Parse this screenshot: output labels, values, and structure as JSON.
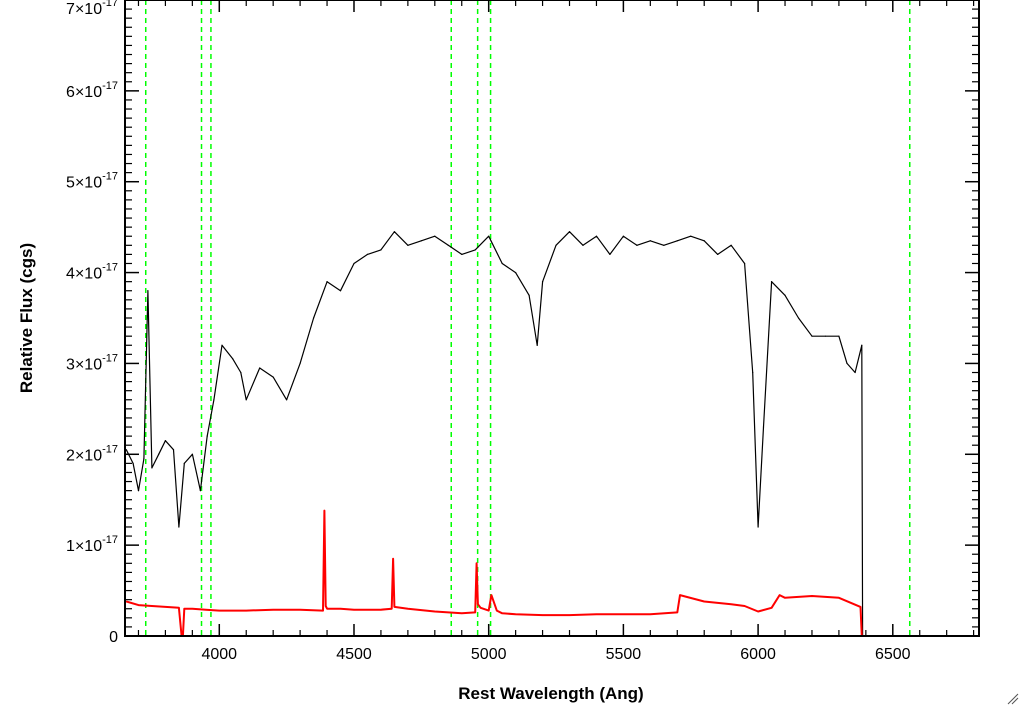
{
  "chart_data": {
    "type": "line",
    "xlabel": "Rest Wavelength (Ang)",
    "ylabel": "Relative Flux (cgs)",
    "xlim": [
      3650,
      6820
    ],
    "ylim": [
      0,
      7e-17
    ],
    "x_ticks": [
      {
        "value": 4000,
        "label": "4000"
      },
      {
        "value": 4500,
        "label": "4500"
      },
      {
        "value": 5000,
        "label": "5000"
      },
      {
        "value": 5500,
        "label": "5500"
      },
      {
        "value": 6000,
        "label": "6000"
      },
      {
        "value": 6500,
        "label": "6500"
      }
    ],
    "y_ticks": [
      {
        "value": 0,
        "mantissa": "0",
        "exponent": ""
      },
      {
        "value": 1e-17,
        "mantissa": "1×10",
        "exponent": "-17"
      },
      {
        "value": 2e-17,
        "mantissa": "2×10",
        "exponent": "-17"
      },
      {
        "value": 3e-17,
        "mantissa": "3×10",
        "exponent": "-17"
      },
      {
        "value": 4e-17,
        "mantissa": "4×10",
        "exponent": "-17"
      },
      {
        "value": 5e-17,
        "mantissa": "5×10",
        "exponent": "-17"
      },
      {
        "value": 6e-17,
        "mantissa": "6×10",
        "exponent": "-17"
      },
      {
        "value": 7e-17,
        "mantissa": "7×10",
        "exponent": "-17"
      }
    ],
    "vertical_lines": [
      3727,
      3934,
      3969,
      4861,
      4959,
      5007,
      6563
    ],
    "series": [
      {
        "color": "#000000",
        "x": [
          3655,
          3680,
          3700,
          3720,
          3735,
          3750,
          3775,
          3800,
          3830,
          3850,
          3870,
          3900,
          3930,
          3955,
          3980,
          4010,
          4050,
          4080,
          4100,
          4150,
          4200,
          4250,
          4300,
          4350,
          4400,
          4450,
          4500,
          4550,
          4600,
          4650,
          4700,
          4750,
          4800,
          4850,
          4900,
          4950,
          5000,
          5050,
          5100,
          5150,
          5180,
          5200,
          5250,
          5300,
          5350,
          5400,
          5450,
          5500,
          5550,
          5600,
          5650,
          5700,
          5750,
          5800,
          5850,
          5900,
          5950,
          5980,
          6000,
          6020,
          6050,
          6100,
          6150,
          6200,
          6250,
          6300,
          6330,
          6360,
          6385,
          6388
        ],
        "values": [
          2.05e-17,
          1.9e-17,
          1.6e-17,
          1.95e-17,
          3.8e-17,
          1.85e-17,
          2e-17,
          2.15e-17,
          2.05e-17,
          1.2e-17,
          1.9e-17,
          2e-17,
          1.6e-17,
          2.2e-17,
          2.6e-17,
          3.2e-17,
          3.05e-17,
          2.9e-17,
          2.6e-17,
          2.95e-17,
          2.85e-17,
          2.6e-17,
          3e-17,
          3.5e-17,
          3.9e-17,
          3.8e-17,
          4.1e-17,
          4.2e-17,
          4.25e-17,
          4.45e-17,
          4.3e-17,
          4.35e-17,
          4.4e-17,
          4.3e-17,
          4.2e-17,
          4.25e-17,
          4.4e-17,
          4.1e-17,
          4e-17,
          3.75e-17,
          3.2e-17,
          3.9e-17,
          4.3e-17,
          4.45e-17,
          4.3e-17,
          4.4e-17,
          4.2e-17,
          4.4e-17,
          4.3e-17,
          4.35e-17,
          4.3e-17,
          4.35e-17,
          4.4e-17,
          4.35e-17,
          4.2e-17,
          4.3e-17,
          4.1e-17,
          2.9e-17,
          1.2e-17,
          2.3e-17,
          3.9e-17,
          3.75e-17,
          3.5e-17,
          3.3e-17,
          3.3e-17,
          3.3e-17,
          3e-17,
          2.9e-17,
          3.2e-17,
          0
        ]
      },
      {
        "color": "#ff0000",
        "x": [
          3655,
          3700,
          3750,
          3800,
          3850,
          3860,
          3865,
          3870,
          3900,
          3950,
          4000,
          4050,
          4100,
          4200,
          4300,
          4385,
          4390,
          4395,
          4400,
          4450,
          4500,
          4550,
          4600,
          4640,
          4645,
          4650,
          4700,
          4800,
          4900,
          4950,
          4955,
          4960,
          4970,
          5000,
          5010,
          5030,
          5050,
          5100,
          5200,
          5300,
          5400,
          5500,
          5600,
          5700,
          5710,
          5800,
          5900,
          5950,
          6000,
          6050,
          6080,
          6100,
          6200,
          6300,
          6380,
          6385,
          6390,
          6820
        ],
        "values": [
          3.8e-18,
          3.4e-18,
          3.3e-18,
          3.2e-18,
          3.1e-18,
          0,
          0,
          3e-18,
          3e-18,
          2.9e-18,
          2.8e-18,
          2.8e-18,
          2.8e-18,
          2.9e-18,
          2.9e-18,
          2.8e-18,
          1.38e-17,
          3.3e-18,
          3e-18,
          3e-18,
          2.9e-18,
          2.9e-18,
          2.9e-18,
          3e-18,
          8.5e-18,
          3.2e-18,
          3e-18,
          2.7e-18,
          2.5e-18,
          2.6e-18,
          8e-18,
          3.5e-18,
          3.1e-18,
          2.8e-18,
          4.5e-18,
          2.8e-18,
          2.5e-18,
          2.4e-18,
          2.3e-18,
          2.3e-18,
          2.4e-18,
          2.4e-18,
          2.4e-18,
          2.6e-18,
          4.5e-18,
          3.8e-18,
          3.5e-18,
          3.3e-18,
          2.7e-18,
          3.1e-18,
          4.5e-18,
          4.2e-18,
          4.4e-18,
          4.2e-18,
          3.2e-18,
          0,
          0,
          0
        ]
      }
    ]
  }
}
